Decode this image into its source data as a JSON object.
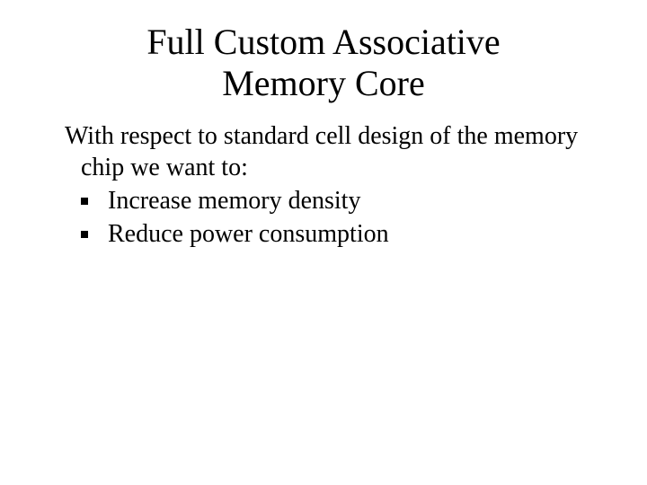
{
  "slide": {
    "title_line1": "Full Custom Associative",
    "title_line2": "Memory Core",
    "intro_text": "With respect to standard cell design of the memory chip we want to:",
    "bullets": [
      {
        "text": "Increase memory density"
      },
      {
        "text": "Reduce power consumption"
      }
    ],
    "style": {
      "background_color": "#ffffff",
      "text_color": "#000000",
      "title_fontsize": 40,
      "body_fontsize": 28,
      "font_family": "Times New Roman",
      "bullet_color": "#000000",
      "bullet_size": 8
    }
  }
}
